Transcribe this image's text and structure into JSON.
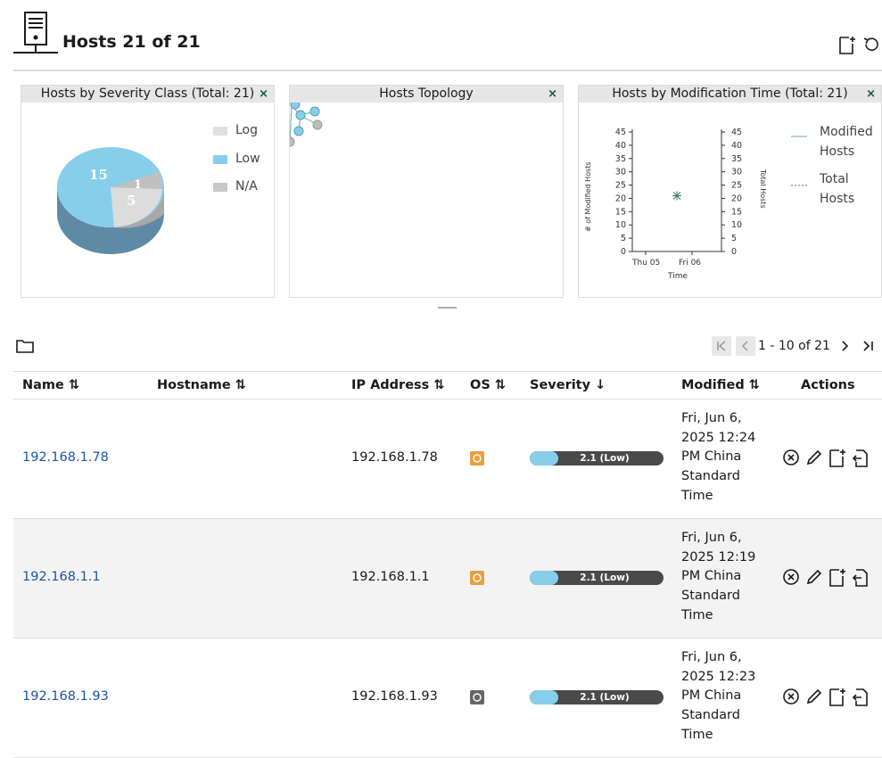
{
  "page": {
    "title": "Hosts 21 of 21"
  },
  "panels": {
    "severity": {
      "title": "Hosts by Severity Class (Total: 21)",
      "close": "×",
      "legend": [
        {
          "label": "Log",
          "color": "#e0e0e0"
        },
        {
          "label": "Low",
          "color": "#87ceeb"
        },
        {
          "label": "N/A",
          "color": "#c8c8c8"
        }
      ],
      "slices": [
        {
          "label": "15",
          "value": 15,
          "color": "#87ceeb"
        },
        {
          "label": "5",
          "value": 5,
          "color": "#dcdcdc"
        },
        {
          "label": "1",
          "value": 1,
          "color": "#c0c0c0"
        }
      ]
    },
    "topology": {
      "title": "Hosts Topology",
      "close": "×"
    },
    "modtime": {
      "title": "Hosts by Modification Time (Total: 21)",
      "close": "×",
      "legend": [
        {
          "label": "Modified\nHosts",
          "line1": "Modified",
          "line2": "Hosts"
        },
        {
          "label": "Total\nHosts",
          "line1": "Total",
          "line2": "Hosts"
        }
      ]
    }
  },
  "chart_data": [
    {
      "type": "pie",
      "title": "Hosts by Severity Class (Total: 21)",
      "categories": [
        "Low",
        "Log",
        "N/A"
      ],
      "values": [
        15,
        5,
        1
      ],
      "legend": [
        "Log",
        "Low",
        "N/A"
      ],
      "legend_position": "right"
    },
    {
      "type": "scatter",
      "title": "Hosts by Modification Time (Total: 21)",
      "xlabel": "Time",
      "ylabel": "# of Modified Hosts",
      "y2label": "Total Hosts",
      "xticks": [
        "Thu 05",
        "Fri 06"
      ],
      "yticks": [
        "0",
        "5",
        "10",
        "15",
        "20",
        "25",
        "30",
        "35",
        "40",
        "45"
      ],
      "ylim": [
        0,
        45
      ],
      "series": [
        {
          "name": "Modified Hosts",
          "x": [
            "Fri 06"
          ],
          "values": [
            21
          ]
        },
        {
          "name": "Total Hosts",
          "x": [
            "Fri 06"
          ],
          "values": [
            21
          ]
        }
      ],
      "legend_position": "right"
    }
  ],
  "pagination": {
    "range": "1 - 10 of 21"
  },
  "table": {
    "headers": {
      "name": "Name",
      "hostname": "Hostname",
      "ip": "IP Address",
      "os": "OS",
      "severity": "Severity",
      "modified": "Modified",
      "actions": "Actions"
    },
    "rows": [
      {
        "name": "192.168.1.78",
        "hostname": "",
        "ip": "192.168.1.78",
        "os_icon": "ubuntu-icon",
        "os_color": "#e8a040",
        "severity_label": "2.1 (Low)",
        "severity_value": 2.1,
        "modified_lines": [
          "Fri, Jun 6,",
          "2025 12:24",
          "PM China",
          "Standard",
          "Time"
        ]
      },
      {
        "name": "192.168.1.1",
        "hostname": "",
        "ip": "192.168.1.1",
        "os_icon": "router-icon",
        "os_color": "#e8a040",
        "severity_label": "2.1 (Low)",
        "severity_value": 2.1,
        "modified_lines": [
          "Fri, Jun 6,",
          "2025 12:19",
          "PM China",
          "Standard",
          "Time"
        ]
      },
      {
        "name": "192.168.1.93",
        "hostname": "",
        "ip": "192.168.1.93",
        "os_icon": "linux-icon",
        "os_color": "#666666",
        "severity_label": "2.1 (Low)",
        "severity_value": 2.1,
        "modified_lines": [
          "Fri, Jun 6,",
          "2025 12:23",
          "PM China",
          "Standard",
          "Time"
        ]
      }
    ]
  }
}
